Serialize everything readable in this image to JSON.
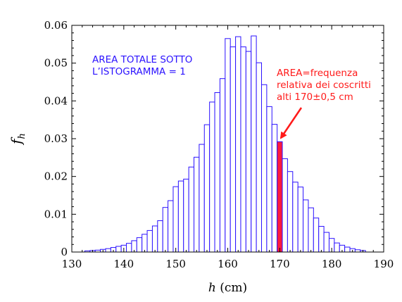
{
  "chart_data": {
    "type": "bar",
    "title": "",
    "xlabel": "h (cm)",
    "ylabel": "f_h",
    "xlabel_parts": {
      "var": "h",
      "unit": " (cm)"
    },
    "ylabel_parts": {
      "var": "f",
      "sub": "h"
    },
    "xlim": [
      130,
      190
    ],
    "ylim": [
      0,
      0.06
    ],
    "xticks": [
      "130",
      "140",
      "150",
      "160",
      "170",
      "180",
      "190"
    ],
    "yticks": [
      "0",
      "0.01",
      "0.02",
      "0.03",
      "0.04",
      "0.05",
      "0.06"
    ],
    "bin_width": 1,
    "bins": [
      {
        "x": 133,
        "y": 0.0003
      },
      {
        "x": 134,
        "y": 0.0004
      },
      {
        "x": 135,
        "y": 0.0005
      },
      {
        "x": 136,
        "y": 0.0007
      },
      {
        "x": 137,
        "y": 0.0009
      },
      {
        "x": 138,
        "y": 0.0012
      },
      {
        "x": 139,
        "y": 0.0015
      },
      {
        "x": 140,
        "y": 0.0018
      },
      {
        "x": 141,
        "y": 0.0023
      },
      {
        "x": 142,
        "y": 0.003
      },
      {
        "x": 143,
        "y": 0.0038
      },
      {
        "x": 144,
        "y": 0.0047
      },
      {
        "x": 145,
        "y": 0.0057
      },
      {
        "x": 146,
        "y": 0.0069
      },
      {
        "x": 147,
        "y": 0.0083
      },
      {
        "x": 148,
        "y": 0.0118
      },
      {
        "x": 149,
        "y": 0.0136
      },
      {
        "x": 150,
        "y": 0.0173
      },
      {
        "x": 151,
        "y": 0.0188
      },
      {
        "x": 152,
        "y": 0.0193
      },
      {
        "x": 153,
        "y": 0.0225
      },
      {
        "x": 154,
        "y": 0.0251
      },
      {
        "x": 155,
        "y": 0.0285
      },
      {
        "x": 156,
        "y": 0.0337
      },
      {
        "x": 157,
        "y": 0.0397
      },
      {
        "x": 158,
        "y": 0.0422
      },
      {
        "x": 159,
        "y": 0.0459
      },
      {
        "x": 160,
        "y": 0.0565
      },
      {
        "x": 161,
        "y": 0.0543
      },
      {
        "x": 162,
        "y": 0.057
      },
      {
        "x": 163,
        "y": 0.0543
      },
      {
        "x": 164,
        "y": 0.0531
      },
      {
        "x": 165,
        "y": 0.0572
      },
      {
        "x": 166,
        "y": 0.0501
      },
      {
        "x": 167,
        "y": 0.0443
      },
      {
        "x": 168,
        "y": 0.0385
      },
      {
        "x": 169,
        "y": 0.0338
      },
      {
        "x": 170,
        "y": 0.0292,
        "highlight": true
      },
      {
        "x": 171,
        "y": 0.0247
      },
      {
        "x": 172,
        "y": 0.0213
      },
      {
        "x": 173,
        "y": 0.0185
      },
      {
        "x": 174,
        "y": 0.0172
      },
      {
        "x": 175,
        "y": 0.0138
      },
      {
        "x": 176,
        "y": 0.0117
      },
      {
        "x": 177,
        "y": 0.009
      },
      {
        "x": 178,
        "y": 0.0068
      },
      {
        "x": 179,
        "y": 0.0052
      },
      {
        "x": 180,
        "y": 0.0036
      },
      {
        "x": 181,
        "y": 0.0024
      },
      {
        "x": 182,
        "y": 0.0018
      },
      {
        "x": 183,
        "y": 0.0013
      },
      {
        "x": 184,
        "y": 0.0009
      },
      {
        "x": 185,
        "y": 0.0006
      },
      {
        "x": 186,
        "y": 0.0004
      }
    ],
    "annotations": {
      "total_area": [
        "AREA TOTALE SOTTO",
        "L’ISTOGRAMMA = 1"
      ],
      "highlight_area": [
        "AREA=frequenza",
        "relativa dei coscritti",
        "alti 170±0,5 cm"
      ]
    },
    "grid": false,
    "legend": "none"
  },
  "colors": {
    "bar_edge": "#2b12ff",
    "highlight_fill": "#ff1a3c",
    "blue_text": "#2b12ff",
    "red_text": "#ff1a1a",
    "axis": "#000000"
  }
}
